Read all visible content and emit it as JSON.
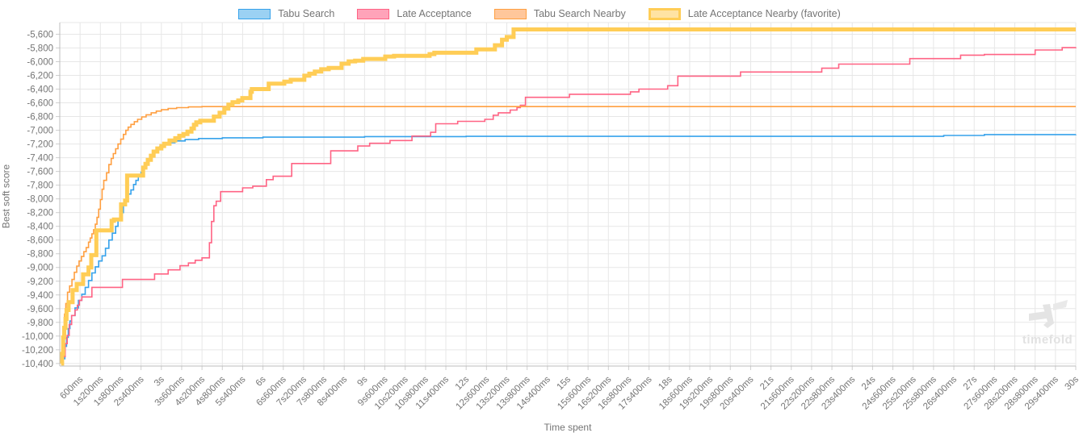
{
  "watermark": {
    "text": "timefold"
  },
  "chart_data": {
    "type": "line",
    "stepped": true,
    "title": "",
    "xlabel": "Time spent",
    "ylabel": "Best soft score",
    "legend_position": "top",
    "grid": true,
    "xlim_s": [
      0,
      30
    ],
    "ylim": [
      -10430,
      -5450
    ],
    "x_tick_step_s": 0.6,
    "x_tick_labels": [
      "600ms",
      "1s200ms",
      "1s800ms",
      "2s400ms",
      "3s",
      "3s600ms",
      "4s200ms",
      "4s800ms",
      "5s400ms",
      "6s",
      "6s600ms",
      "7s200ms",
      "7s800ms",
      "8s400ms",
      "9s",
      "9s600ms",
      "10s200ms",
      "10s800ms",
      "11s400ms",
      "12s",
      "12s600ms",
      "13s200ms",
      "13s800ms",
      "14s400ms",
      "15s",
      "15s600ms",
      "16s200ms",
      "16s800ms",
      "17s400ms",
      "18s",
      "18s600ms",
      "19s200ms",
      "19s800ms",
      "20s400ms",
      "21s",
      "21s600ms",
      "22s200ms",
      "22s800ms",
      "23s400ms",
      "24s",
      "24s600ms",
      "25s200ms",
      "25s800ms",
      "26s400ms",
      "27s",
      "27s600ms",
      "28s200ms",
      "28s800ms",
      "29s400ms",
      "30s"
    ],
    "y_ticks": [
      -5600,
      -5800,
      -6000,
      -6200,
      -6400,
      -6600,
      -6800,
      -7000,
      -7200,
      -7400,
      -7600,
      -7800,
      -8000,
      -8200,
      -8400,
      -8600,
      -8800,
      -9000,
      -9200,
      -9400,
      -9600,
      -9800,
      -10000,
      -10200,
      -10400
    ],
    "y_tick_labels": [
      "-5,600",
      "-5,800",
      "-6,000",
      "-6,200",
      "-6,400",
      "-6,600",
      "-6,800",
      "-7,000",
      "-7,200",
      "-7,400",
      "-7,600",
      "-7,800",
      "-8,000",
      "-8,200",
      "-8,400",
      "-8,600",
      "-8,800",
      "-9,000",
      "-9,200",
      "-9,400",
      "-9,600",
      "-9,800",
      "-10,000",
      "-10,200",
      "-10,400"
    ],
    "series": [
      {
        "name": "Tabu Search",
        "color": "#36a2eb",
        "fill": "#9bd1f3",
        "favorite": false,
        "width": 1.6,
        "points": [
          [
            0.05,
            -10400
          ],
          [
            0.1,
            -10330
          ],
          [
            0.15,
            -10150
          ],
          [
            0.2,
            -10020
          ],
          [
            0.25,
            -9890
          ],
          [
            0.3,
            -9780
          ],
          [
            0.35,
            -9700
          ],
          [
            0.45,
            -9590
          ],
          [
            0.55,
            -9480
          ],
          [
            0.65,
            -9390
          ],
          [
            0.75,
            -9290
          ],
          [
            0.85,
            -9190
          ],
          [
            0.95,
            -9080
          ],
          [
            1.05,
            -8990
          ],
          [
            1.15,
            -8905
          ],
          [
            1.25,
            -8830
          ],
          [
            1.35,
            -8720
          ],
          [
            1.45,
            -8600
          ],
          [
            1.55,
            -8500
          ],
          [
            1.65,
            -8400
          ],
          [
            1.72,
            -8300
          ],
          [
            1.8,
            -8200
          ],
          [
            1.88,
            -8100
          ],
          [
            1.95,
            -8000
          ],
          [
            2.02,
            -7930
          ],
          [
            2.1,
            -7870
          ],
          [
            2.18,
            -7790
          ],
          [
            2.25,
            -7730
          ],
          [
            2.32,
            -7670
          ],
          [
            2.4,
            -7610
          ],
          [
            2.47,
            -7550
          ],
          [
            2.55,
            -7480
          ],
          [
            2.62,
            -7420
          ],
          [
            2.7,
            -7370
          ],
          [
            2.78,
            -7320
          ],
          [
            2.85,
            -7280
          ],
          [
            2.95,
            -7240
          ],
          [
            3.05,
            -7210
          ],
          [
            3.2,
            -7180
          ],
          [
            3.4,
            -7155
          ],
          [
            3.7,
            -7135
          ],
          [
            4.1,
            -7120
          ],
          [
            4.8,
            -7110
          ],
          [
            6.0,
            -7100
          ],
          [
            9.0,
            -7092
          ],
          [
            12.0,
            -7088
          ],
          [
            26.1,
            -7075
          ],
          [
            27.3,
            -7062
          ],
          [
            30,
            -7060
          ]
        ]
      },
      {
        "name": "Late Acceptance",
        "color": "#ff6384",
        "fill": "#ffa3b9",
        "favorite": false,
        "width": 1.6,
        "points": [
          [
            0.05,
            -10400
          ],
          [
            0.1,
            -10300
          ],
          [
            0.16,
            -10110
          ],
          [
            0.22,
            -9990
          ],
          [
            0.28,
            -9830
          ],
          [
            0.35,
            -9700
          ],
          [
            0.45,
            -9620
          ],
          [
            0.52,
            -9550
          ],
          [
            0.58,
            -9480
          ],
          [
            0.65,
            -9430
          ],
          [
            0.95,
            -9290
          ],
          [
            1.85,
            -9175
          ],
          [
            2.8,
            -9095
          ],
          [
            3.2,
            -9035
          ],
          [
            3.55,
            -8975
          ],
          [
            3.8,
            -8935
          ],
          [
            4.0,
            -8895
          ],
          [
            4.2,
            -8860
          ],
          [
            4.42,
            -8640
          ],
          [
            4.48,
            -8330
          ],
          [
            4.55,
            -8100
          ],
          [
            4.62,
            -8035
          ],
          [
            4.75,
            -7895
          ],
          [
            5.4,
            -7840
          ],
          [
            5.7,
            -7815
          ],
          [
            6.1,
            -7720
          ],
          [
            6.3,
            -7670
          ],
          [
            6.85,
            -7485
          ],
          [
            8.0,
            -7300
          ],
          [
            8.8,
            -7230
          ],
          [
            9.15,
            -7190
          ],
          [
            9.75,
            -7150
          ],
          [
            10.4,
            -7085
          ],
          [
            10.95,
            -7030
          ],
          [
            11.1,
            -6905
          ],
          [
            11.75,
            -6870
          ],
          [
            12.55,
            -6840
          ],
          [
            12.8,
            -6780
          ],
          [
            12.95,
            -6745
          ],
          [
            13.3,
            -6705
          ],
          [
            13.5,
            -6670
          ],
          [
            13.6,
            -6635
          ],
          [
            13.75,
            -6520
          ],
          [
            15.05,
            -6475
          ],
          [
            16.85,
            -6440
          ],
          [
            17.1,
            -6400
          ],
          [
            17.95,
            -6350
          ],
          [
            18.25,
            -6210
          ],
          [
            20.1,
            -6150
          ],
          [
            22.5,
            -6095
          ],
          [
            23.0,
            -6035
          ],
          [
            25.1,
            -5955
          ],
          [
            26.6,
            -5905
          ],
          [
            27.3,
            -5895
          ],
          [
            28.8,
            -5830
          ],
          [
            29.6,
            -5795
          ],
          [
            30,
            -5790
          ]
        ]
      },
      {
        "name": "Tabu Search Nearby",
        "color": "#ff9f40",
        "fill": "#ffc79b",
        "favorite": false,
        "width": 1.6,
        "points": [
          [
            0.04,
            -10400
          ],
          [
            0.07,
            -10150
          ],
          [
            0.1,
            -9910
          ],
          [
            0.14,
            -9680
          ],
          [
            0.18,
            -9525
          ],
          [
            0.23,
            -9360
          ],
          [
            0.29,
            -9270
          ],
          [
            0.36,
            -9175
          ],
          [
            0.43,
            -9070
          ],
          [
            0.5,
            -8980
          ],
          [
            0.57,
            -8905
          ],
          [
            0.64,
            -8840
          ],
          [
            0.71,
            -8770
          ],
          [
            0.78,
            -8710
          ],
          [
            0.85,
            -8630
          ],
          [
            0.9,
            -8570
          ],
          [
            0.95,
            -8510
          ],
          [
            1.0,
            -8450
          ],
          [
            1.05,
            -8370
          ],
          [
            1.1,
            -8270
          ],
          [
            1.15,
            -8150
          ],
          [
            1.2,
            -8010
          ],
          [
            1.25,
            -7860
          ],
          [
            1.3,
            -7730
          ],
          [
            1.38,
            -7620
          ],
          [
            1.45,
            -7500
          ],
          [
            1.52,
            -7410
          ],
          [
            1.58,
            -7340
          ],
          [
            1.65,
            -7270
          ],
          [
            1.72,
            -7200
          ],
          [
            1.8,
            -7130
          ],
          [
            1.88,
            -7060
          ],
          [
            1.95,
            -7000
          ],
          [
            2.02,
            -6955
          ],
          [
            2.1,
            -6915
          ],
          [
            2.2,
            -6875
          ],
          [
            2.3,
            -6840
          ],
          [
            2.42,
            -6805
          ],
          [
            2.55,
            -6775
          ],
          [
            2.7,
            -6745
          ],
          [
            2.85,
            -6720
          ],
          [
            3.0,
            -6700
          ],
          [
            3.2,
            -6683
          ],
          [
            3.45,
            -6670
          ],
          [
            3.8,
            -6660
          ],
          [
            4.2,
            -6655
          ],
          [
            30,
            -6655
          ]
        ]
      },
      {
        "name": "Late Acceptance Nearby (favorite)",
        "color": "#ffcd56",
        "fill": "#ffe3a3",
        "favorite": true,
        "width": 5,
        "points": [
          [
            0.04,
            -10400
          ],
          [
            0.07,
            -10260
          ],
          [
            0.1,
            -10020
          ],
          [
            0.13,
            -9880
          ],
          [
            0.17,
            -9750
          ],
          [
            0.2,
            -9620
          ],
          [
            0.26,
            -9505
          ],
          [
            0.38,
            -9330
          ],
          [
            0.5,
            -9240
          ],
          [
            0.69,
            -9100
          ],
          [
            0.85,
            -9000
          ],
          [
            0.93,
            -8820
          ],
          [
            1.08,
            -8460
          ],
          [
            1.53,
            -8320
          ],
          [
            1.6,
            -8300
          ],
          [
            1.81,
            -8080
          ],
          [
            1.93,
            -8025
          ],
          [
            1.99,
            -7660
          ],
          [
            2.46,
            -7545
          ],
          [
            2.53,
            -7490
          ],
          [
            2.6,
            -7430
          ],
          [
            2.69,
            -7370
          ],
          [
            2.77,
            -7310
          ],
          [
            2.88,
            -7265
          ],
          [
            3.0,
            -7230
          ],
          [
            3.08,
            -7195
          ],
          [
            3.24,
            -7150
          ],
          [
            3.41,
            -7115
          ],
          [
            3.53,
            -7080
          ],
          [
            3.65,
            -7055
          ],
          [
            3.77,
            -7020
          ],
          [
            3.89,
            -6975
          ],
          [
            3.96,
            -6920
          ],
          [
            4.03,
            -6885
          ],
          [
            4.15,
            -6860
          ],
          [
            4.55,
            -6800
          ],
          [
            4.72,
            -6745
          ],
          [
            4.86,
            -6685
          ],
          [
            4.98,
            -6625
          ],
          [
            5.1,
            -6590
          ],
          [
            5.27,
            -6565
          ],
          [
            5.39,
            -6530
          ],
          [
            5.63,
            -6440
          ],
          [
            5.67,
            -6400
          ],
          [
            6.17,
            -6320
          ],
          [
            6.63,
            -6290
          ],
          [
            6.82,
            -6265
          ],
          [
            7.22,
            -6205
          ],
          [
            7.37,
            -6175
          ],
          [
            7.53,
            -6145
          ],
          [
            7.72,
            -6110
          ],
          [
            7.94,
            -6090
          ],
          [
            8.32,
            -6030
          ],
          [
            8.53,
            -5995
          ],
          [
            8.72,
            -5985
          ],
          [
            8.96,
            -5960
          ],
          [
            9.61,
            -5925
          ],
          [
            9.87,
            -5915
          ],
          [
            10.92,
            -5890
          ],
          [
            11.06,
            -5870
          ],
          [
            12.3,
            -5820
          ],
          [
            12.85,
            -5760
          ],
          [
            13.06,
            -5680
          ],
          [
            13.2,
            -5640
          ],
          [
            13.4,
            -5530
          ],
          [
            30,
            -5530
          ]
        ]
      }
    ]
  }
}
